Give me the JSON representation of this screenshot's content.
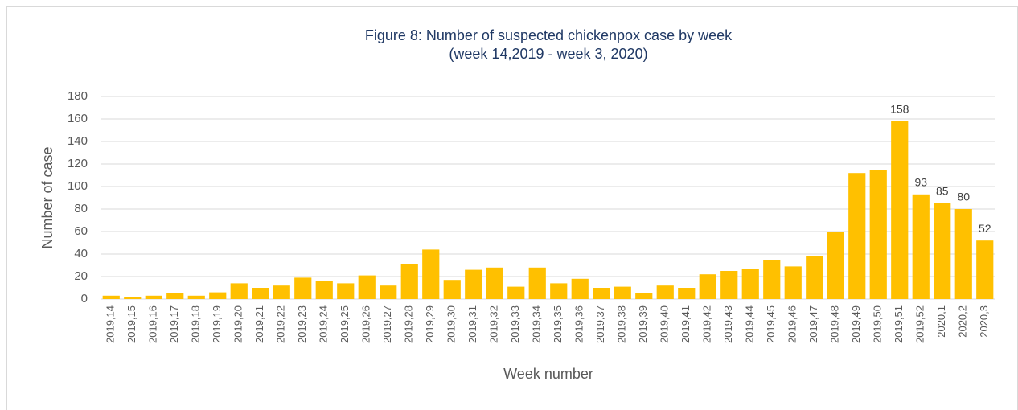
{
  "chart_data": {
    "type": "bar",
    "title": "Figure 8: Number of suspected chickenpox case by week",
    "subtitle": "(week 14,2019 - week 3, 2020)",
    "x_label": "Week number",
    "y_label": "Number of case",
    "categories": [
      "2019,14",
      "2019,15",
      "2019,16",
      "2019,17",
      "2019,18",
      "2019,19",
      "2019,20",
      "2019,21",
      "2019,22",
      "2019,23",
      "2019,24",
      "2019,25",
      "2019,26",
      "2019,27",
      "2019,28",
      "2019,29",
      "2019,30",
      "2019,31",
      "2019,32",
      "2019,33",
      "2019,34",
      "2019,35",
      "2019,36",
      "2019,37",
      "2019,38",
      "2019,39",
      "2019,40",
      "2019,41",
      "2019,42",
      "2019,43",
      "2019,44",
      "2019,45",
      "2019,46",
      "2019,47",
      "2019,48",
      "2019,49",
      "2019,50",
      "2019,51",
      "2019,52",
      "2020,1",
      "2020,2",
      "2020,3"
    ],
    "values": [
      3,
      2,
      3,
      5,
      3,
      6,
      14,
      10,
      12,
      19,
      16,
      14,
      21,
      12,
      31,
      44,
      17,
      26,
      28,
      11,
      28,
      14,
      18,
      10,
      11,
      5,
      12,
      10,
      22,
      25,
      27,
      35,
      29,
      38,
      60,
      112,
      115,
      158,
      93,
      85,
      80,
      52
    ],
    "value_labels": [
      null,
      null,
      null,
      null,
      null,
      null,
      null,
      null,
      null,
      null,
      null,
      null,
      null,
      null,
      null,
      null,
      null,
      null,
      null,
      null,
      null,
      null,
      null,
      null,
      null,
      null,
      null,
      null,
      null,
      null,
      null,
      null,
      null,
      null,
      null,
      null,
      null,
      "158",
      "93",
      "85",
      "80",
      "52"
    ],
    "color": "#ffc000",
    "ylim": [
      0,
      180
    ],
    "yticks": [
      0,
      20,
      40,
      60,
      80,
      100,
      120,
      140,
      160,
      180
    ],
    "grid": true
  }
}
